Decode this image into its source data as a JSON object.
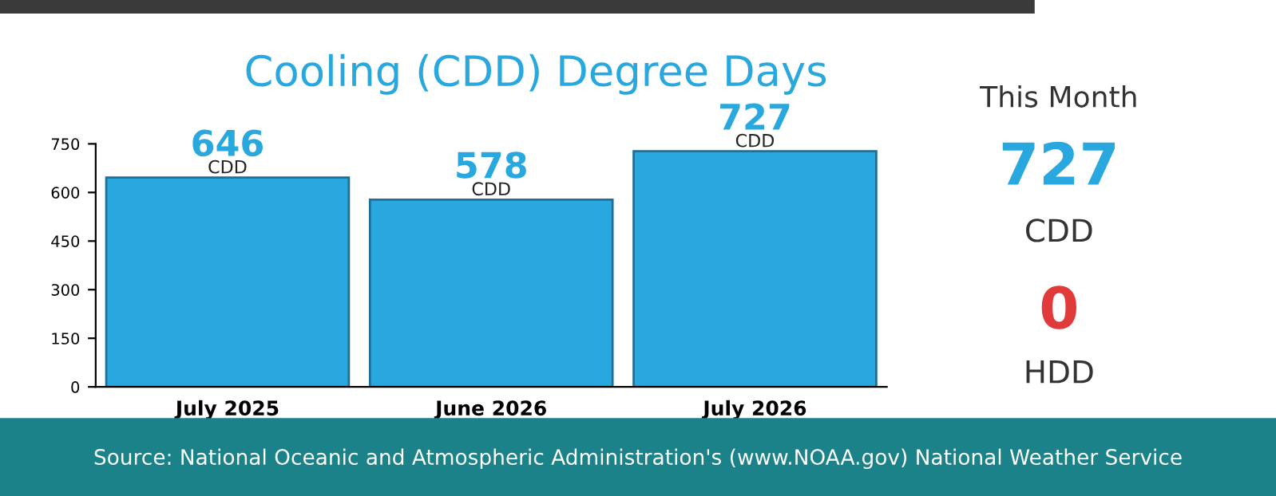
{
  "chart_data": {
    "type": "bar",
    "title": "Cooling (CDD) Degree Days",
    "categories": [
      "July 2025",
      "June 2026",
      "July 2026"
    ],
    "values": [
      646,
      578,
      727
    ],
    "color": "#29a8e0",
    "value_labels": [
      "646",
      "578",
      "727"
    ],
    "ylim": [
      0,
      750
    ],
    "yticks": [
      0,
      150,
      300,
      450,
      600,
      750
    ],
    "grid": false,
    "legend": false,
    "annotations": [
      {
        "text": "CDD",
        "x": "July 2025",
        "y": 646
      },
      {
        "text": "CDD",
        "x": "June 2026",
        "y": 578
      },
      {
        "text": "CDD",
        "x": "July 2026",
        "y": 727
      },
      "This Month",
      "727",
      "CDD",
      "0",
      "HDD",
      "Source: National Oceanic and Atmospheric Administration's (www.NOAA.gov) National Weather Service"
    ]
  }
}
